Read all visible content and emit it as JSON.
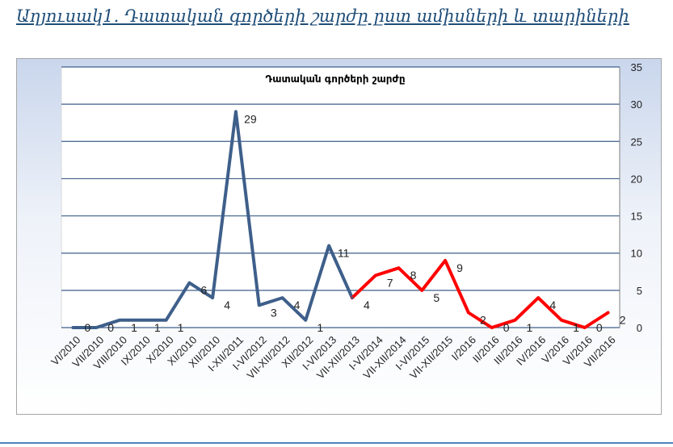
{
  "heading": "Աղյուսակ1. Դատական գործերի շարժը ըստ ամիսների և տարիների",
  "colors": {
    "early": "#3e5f8a",
    "late": "#ff0000",
    "grid": "#3e5f8a",
    "heading": "#1f4e79"
  },
  "chart_data": {
    "type": "line",
    "title": "Դատական գործերի շարժը",
    "categories": [
      "VI/2010",
      "VII/2010",
      "VIII/2010",
      "IX/2010",
      "X/2010",
      "XI/2010",
      "XII/2010",
      "I-XII/2011",
      "I-VI/2012",
      "VII-XII/2012",
      "XII/2012",
      "I-VI/2013",
      "VII-XII/2013",
      "I-VI/2014",
      "VII-XII/2014",
      "I-VI/2015",
      "VII-XII/2015",
      "I/2016",
      "II/2016",
      "III/2016",
      "IV/2016",
      "V/2016",
      "VI/2016",
      "VII/2016"
    ],
    "values": [
      0,
      0,
      1,
      1,
      1,
      6,
      4,
      29,
      3,
      4,
      1,
      11,
      4,
      7,
      8,
      5,
      9,
      2,
      0,
      1,
      4,
      1,
      0,
      2
    ],
    "series_segments": [
      {
        "color": "early",
        "from": 0,
        "to": 12
      },
      {
        "color": "late",
        "from": 12,
        "to": 23
      }
    ],
    "labels": [
      {
        "i": 0,
        "text": "0"
      },
      {
        "i": 1,
        "text": "0"
      },
      {
        "i": 2,
        "text": "1"
      },
      {
        "i": 3,
        "text": "1"
      },
      {
        "i": 4,
        "text": "1"
      },
      {
        "i": 5,
        "text": "6"
      },
      {
        "i": 6,
        "text": "4"
      },
      {
        "i": 7,
        "text": "29"
      },
      {
        "i": 8,
        "text": "3"
      },
      {
        "i": 9,
        "text": "4"
      },
      {
        "i": 10,
        "text": "1"
      },
      {
        "i": 11,
        "text": "11"
      },
      {
        "i": 12,
        "text": "4"
      },
      {
        "i": 13,
        "text": "7"
      },
      {
        "i": 14,
        "text": "8"
      },
      {
        "i": 15,
        "text": "5"
      },
      {
        "i": 16,
        "text": "9"
      },
      {
        "i": 17,
        "text": "2"
      },
      {
        "i": 18,
        "text": "0"
      },
      {
        "i": 19,
        "text": "1"
      },
      {
        "i": 20,
        "text": "4"
      },
      {
        "i": 21,
        "text": "1"
      },
      {
        "i": 22,
        "text": "0"
      },
      {
        "i": 23,
        "text": "2"
      }
    ],
    "y_axis": {
      "position": "right",
      "min": 0,
      "max": 35,
      "step": 5
    },
    "grid": true,
    "legend": "none"
  }
}
